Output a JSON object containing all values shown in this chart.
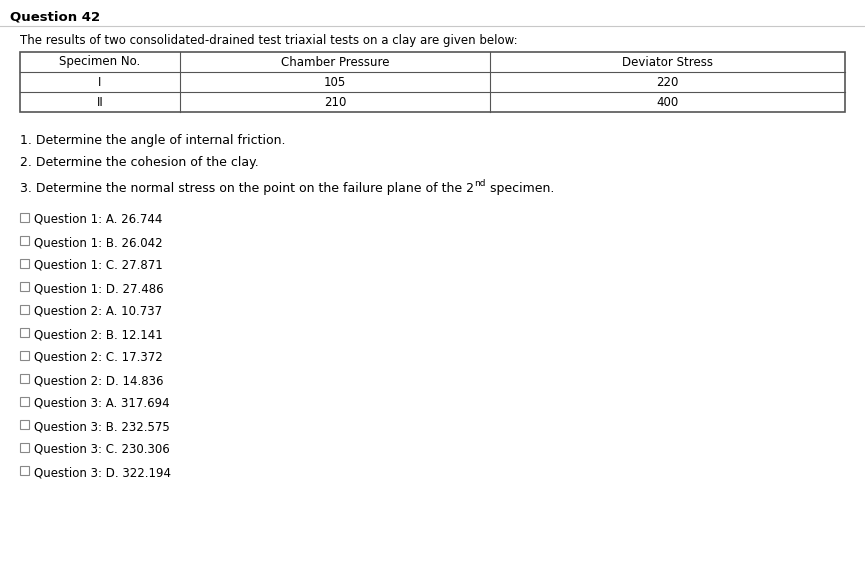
{
  "title": "Question 42",
  "intro_text": "The results of two consolidated-drained test triaxial tests on a clay are given below:",
  "table_headers": [
    "Specimen No.",
    "Chamber Pressure",
    "Deviator Stress"
  ],
  "table_rows": [
    [
      "I",
      "105",
      "220"
    ],
    [
      "II",
      "210",
      "400"
    ]
  ],
  "questions": [
    "1. Determine the angle of internal friction.",
    "2. Determine the cohesion of the clay."
  ],
  "question3_prefix": "3. Determine the normal stress on the point on the failure plane of the 2",
  "question3_superscript": "nd",
  "question3_suffix": " specimen.",
  "choices": [
    "Question 1: A. 26.744",
    "Question 1: B. 26.042",
    "Question 1: C. 27.871",
    "Question 1: D. 27.486",
    "Question 2: A. 10.737",
    "Question 2: B. 12.141",
    "Question 2: C. 17.372",
    "Question 2: D. 14.836",
    "Question 3: A. 317.694",
    "Question 3: B. 232.575",
    "Question 3: C. 230.306",
    "Question 3: D. 322.194"
  ],
  "bg_color": "#ffffff",
  "title_line_color": "#c8c8c8",
  "table_border_color": "#555555",
  "table_inner_color": "#aaaaaa",
  "text_color": "#000000",
  "checkbox_color": "#ffffff",
  "checkbox_border": "#888888",
  "font_size_title": 9.5,
  "font_size_intro": 8.5,
  "font_size_table_header": 8.5,
  "font_size_table_data": 8.5,
  "font_size_question": 9.0,
  "font_size_choice": 8.5,
  "font_size_sup": 6.5
}
